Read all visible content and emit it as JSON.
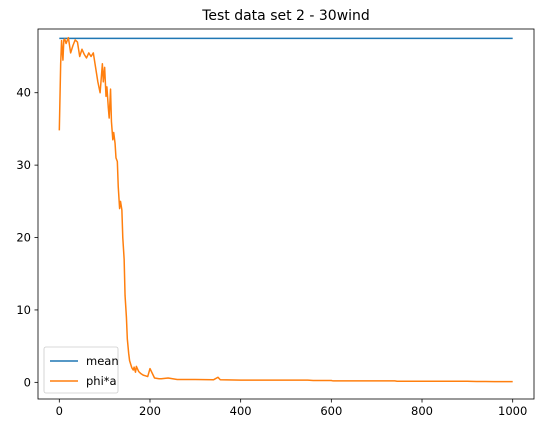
{
  "chart_data": {
    "type": "line",
    "title": "Test data set 2 - 30wind",
    "xlabel": "",
    "ylabel": "",
    "xlim": [
      -47,
      1047
    ],
    "ylim": [
      -2.3,
      48.8
    ],
    "xticks": [
      0,
      200,
      400,
      600,
      800,
      1000
    ],
    "yticks": [
      0,
      10,
      20,
      30,
      40
    ],
    "grid": false,
    "legend": "lower-left",
    "series": [
      {
        "name": "mean",
        "color": "#1f77b4",
        "x": [
          0,
          1000
        ],
        "y": [
          47.5,
          47.5
        ]
      },
      {
        "name": "phi*a",
        "color": "#ff7f0e",
        "x": [
          0,
          3,
          5,
          8,
          10,
          12,
          15,
          18,
          20,
          25,
          30,
          35,
          40,
          45,
          50,
          55,
          60,
          65,
          70,
          75,
          80,
          85,
          90,
          95,
          97,
          100,
          103,
          105,
          108,
          110,
          113,
          115,
          118,
          120,
          123,
          125,
          128,
          130,
          133,
          135,
          138,
          140,
          143,
          145,
          148,
          150,
          153,
          155,
          158,
          160,
          163,
          165,
          168,
          170,
          175,
          180,
          185,
          190,
          195,
          200,
          210,
          220,
          222,
          225,
          240,
          260,
          300,
          340,
          350,
          355,
          400,
          420,
          425,
          430,
          500,
          540,
          545,
          548,
          560,
          570,
          572,
          575,
          600,
          602,
          605,
          640,
          650,
          680,
          700,
          715,
          718,
          720,
          722,
          725,
          740,
          745,
          760,
          800,
          850,
          880,
          900,
          920,
          940,
          960,
          980,
          1000
        ],
        "y": [
          34.8,
          44,
          47.2,
          44.5,
          47.3,
          47.4,
          46.8,
          47.3,
          47.6,
          45.5,
          46.5,
          47.3,
          47,
          45,
          46,
          45.3,
          44.8,
          45.5,
          45,
          45.5,
          43.5,
          41.5,
          40,
          44,
          41.5,
          43.5,
          39.5,
          40.8,
          38,
          36.5,
          40.5,
          36,
          33.5,
          34.5,
          33,
          31,
          30.5,
          27,
          24,
          25,
          23.8,
          20,
          17,
          12,
          9,
          6,
          4,
          3,
          2.4,
          2,
          1.7,
          2.1,
          1.4,
          2.2,
          1.5,
          1.2,
          1,
          0.9,
          0.8,
          1.9,
          0.6,
          0.5,
          0.5,
          0.5,
          0.6,
          0.4,
          0.4,
          0.35,
          0.7,
          0.35,
          0.3,
          0.3,
          0.3,
          0.3,
          0.3,
          0.3,
          0.3,
          0.3,
          0.25,
          0.25,
          0.25,
          0.25,
          0.25,
          0.22,
          0.2,
          0.2,
          0.2,
          0.2,
          0.2,
          0.2,
          0.2,
          0.2,
          0.2,
          0.2,
          0.2,
          0.15,
          0.15,
          0.15,
          0.15,
          0.15,
          0.15,
          0.12,
          0.12,
          0.1,
          0.1,
          0.1
        ]
      }
    ]
  }
}
